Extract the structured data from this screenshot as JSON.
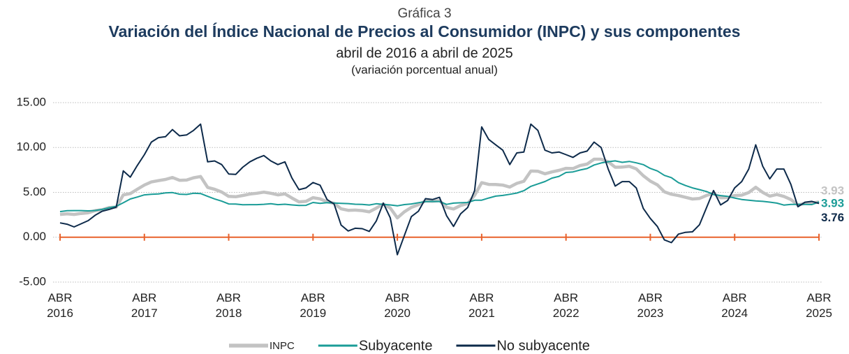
{
  "chart_data": {
    "type": "line",
    "subtitle_top": "Gráfica 3",
    "title": "Variación del Índice Nacional de Precios al Consumidor (INPC) y sus componentes",
    "subtitle": "abril de 2016 a abril de 2025",
    "y_label": "(variación porcentual anual)",
    "categories": [
      "ABR 2016",
      null,
      null,
      null,
      null,
      null,
      null,
      null,
      null,
      null,
      null,
      null,
      "ABR 2017",
      null,
      null,
      null,
      null,
      null,
      null,
      null,
      null,
      null,
      null,
      null,
      "ABR 2018",
      null,
      null,
      null,
      null,
      null,
      null,
      null,
      null,
      null,
      null,
      null,
      "ABR 2019",
      null,
      null,
      null,
      null,
      null,
      null,
      null,
      null,
      null,
      null,
      null,
      "ABR 2020",
      null,
      null,
      null,
      null,
      null,
      null,
      null,
      null,
      null,
      null,
      null,
      "ABR 2021",
      null,
      null,
      null,
      null,
      null,
      null,
      null,
      null,
      null,
      null,
      null,
      "ABR 2022",
      null,
      null,
      null,
      null,
      null,
      null,
      null,
      null,
      null,
      null,
      null,
      "ABR 2023",
      null,
      null,
      null,
      null,
      null,
      null,
      null,
      null,
      null,
      null,
      null,
      "ABR 2024",
      null,
      null,
      null,
      null,
      null,
      null,
      null,
      null,
      null,
      null,
      null,
      "ABR 2025"
    ],
    "series": [
      {
        "name": "INPC",
        "color": "#c3c3c3",
        "values": [
          2.54,
          2.6,
          2.54,
          2.65,
          2.73,
          2.97,
          3.06,
          3.31,
          3.36,
          4.72,
          4.86,
          5.35,
          5.82,
          6.16,
          6.31,
          6.44,
          6.66,
          6.35,
          6.37,
          6.63,
          6.77,
          5.55,
          5.34,
          5.04,
          4.55,
          4.51,
          4.65,
          4.81,
          4.9,
          5.02,
          4.9,
          4.72,
          4.83,
          4.37,
          3.94,
          4.0,
          4.41,
          4.28,
          3.95,
          3.78,
          3.16,
          3.0,
          3.02,
          2.97,
          2.83,
          3.24,
          3.7,
          3.25,
          2.15,
          2.84,
          3.33,
          3.62,
          4.05,
          4.01,
          4.09,
          3.33,
          3.15,
          3.54,
          3.76,
          4.67,
          6.08,
          5.89,
          5.88,
          5.81,
          5.59,
          6.0,
          6.24,
          7.37,
          7.36,
          7.07,
          7.28,
          7.45,
          7.68,
          7.65,
          7.99,
          8.15,
          8.7,
          8.7,
          8.41,
          7.8,
          7.82,
          7.91,
          7.62,
          6.85,
          6.25,
          5.84,
          5.06,
          4.79,
          4.64,
          4.45,
          4.26,
          4.32,
          4.66,
          4.88,
          4.4,
          4.42,
          4.65,
          4.69,
          4.98,
          5.57,
          4.99,
          4.58,
          4.76,
          4.55,
          4.21,
          3.59,
          3.77,
          3.8,
          3.93
        ]
      },
      {
        "name": "Subyacente",
        "color": "#1a9c97",
        "values": [
          2.85,
          2.96,
          2.97,
          2.97,
          2.94,
          2.98,
          3.1,
          3.29,
          3.44,
          3.84,
          4.26,
          4.48,
          4.72,
          4.78,
          4.83,
          4.94,
          4.98,
          4.8,
          4.77,
          4.9,
          4.87,
          4.56,
          4.27,
          4.02,
          3.71,
          3.69,
          3.62,
          3.63,
          3.63,
          3.67,
          3.73,
          3.63,
          3.68,
          3.6,
          3.54,
          3.55,
          3.87,
          3.77,
          3.85,
          3.82,
          3.78,
          3.75,
          3.68,
          3.65,
          3.59,
          3.73,
          3.66,
          3.6,
          3.5,
          3.64,
          3.71,
          3.85,
          3.97,
          3.99,
          3.98,
          3.66,
          3.8,
          3.84,
          3.87,
          4.12,
          4.13,
          4.37,
          4.58,
          4.66,
          4.78,
          4.92,
          5.19,
          5.67,
          5.94,
          6.21,
          6.59,
          6.78,
          7.22,
          7.28,
          7.49,
          7.65,
          8.05,
          8.28,
          8.42,
          8.51,
          8.35,
          8.45,
          8.29,
          8.09,
          7.67,
          7.39,
          6.89,
          6.64,
          6.08,
          5.76,
          5.5,
          5.3,
          5.09,
          4.76,
          4.64,
          4.55,
          4.37,
          4.21,
          4.13,
          4.05,
          4.0,
          3.91,
          3.8,
          3.58,
          3.65,
          3.66,
          3.65,
          3.64,
          3.93
        ]
      },
      {
        "name": "No subyacente",
        "color": "#0d2a4a",
        "values": [
          1.6,
          1.45,
          1.15,
          1.5,
          1.85,
          2.45,
          2.9,
          3.1,
          3.35,
          7.4,
          6.7,
          8.0,
          9.2,
          10.6,
          11.1,
          11.2,
          12.0,
          11.3,
          11.4,
          11.9,
          12.6,
          8.4,
          8.5,
          8.1,
          7.05,
          7.0,
          7.8,
          8.4,
          8.8,
          9.1,
          8.5,
          8.1,
          8.4,
          6.6,
          5.3,
          5.5,
          6.1,
          5.8,
          4.2,
          3.7,
          1.35,
          0.7,
          1.0,
          0.95,
          0.65,
          1.8,
          3.8,
          2.15,
          -1.95,
          0.2,
          2.3,
          2.9,
          4.3,
          4.2,
          4.45,
          2.4,
          1.2,
          2.6,
          3.3,
          5.2,
          12.3,
          10.9,
          10.3,
          9.7,
          8.1,
          9.4,
          9.5,
          12.6,
          11.9,
          9.7,
          9.4,
          9.5,
          9.2,
          8.9,
          9.4,
          9.6,
          10.6,
          10.0,
          7.6,
          5.7,
          6.2,
          6.2,
          5.5,
          3.2,
          2.1,
          1.2,
          -0.3,
          -0.6,
          0.35,
          0.55,
          0.6,
          1.4,
          3.3,
          5.2,
          3.6,
          4.1,
          5.5,
          6.2,
          7.6,
          10.3,
          7.9,
          6.5,
          7.6,
          7.6,
          5.9,
          3.4,
          3.9,
          4.0,
          3.76
        ]
      }
    ],
    "ylim": [
      -5,
      15
    ],
    "yticks": [
      {
        "value": -5,
        "label": "-5.00"
      },
      {
        "value": 0,
        "label": "0.00"
      },
      {
        "value": 5,
        "label": "5.00"
      },
      {
        "value": 10,
        "label": "10.00"
      },
      {
        "value": 15,
        "label": "15.00"
      }
    ],
    "grid": true,
    "zero_line_color": "#e8622c",
    "legend": "bottom"
  }
}
